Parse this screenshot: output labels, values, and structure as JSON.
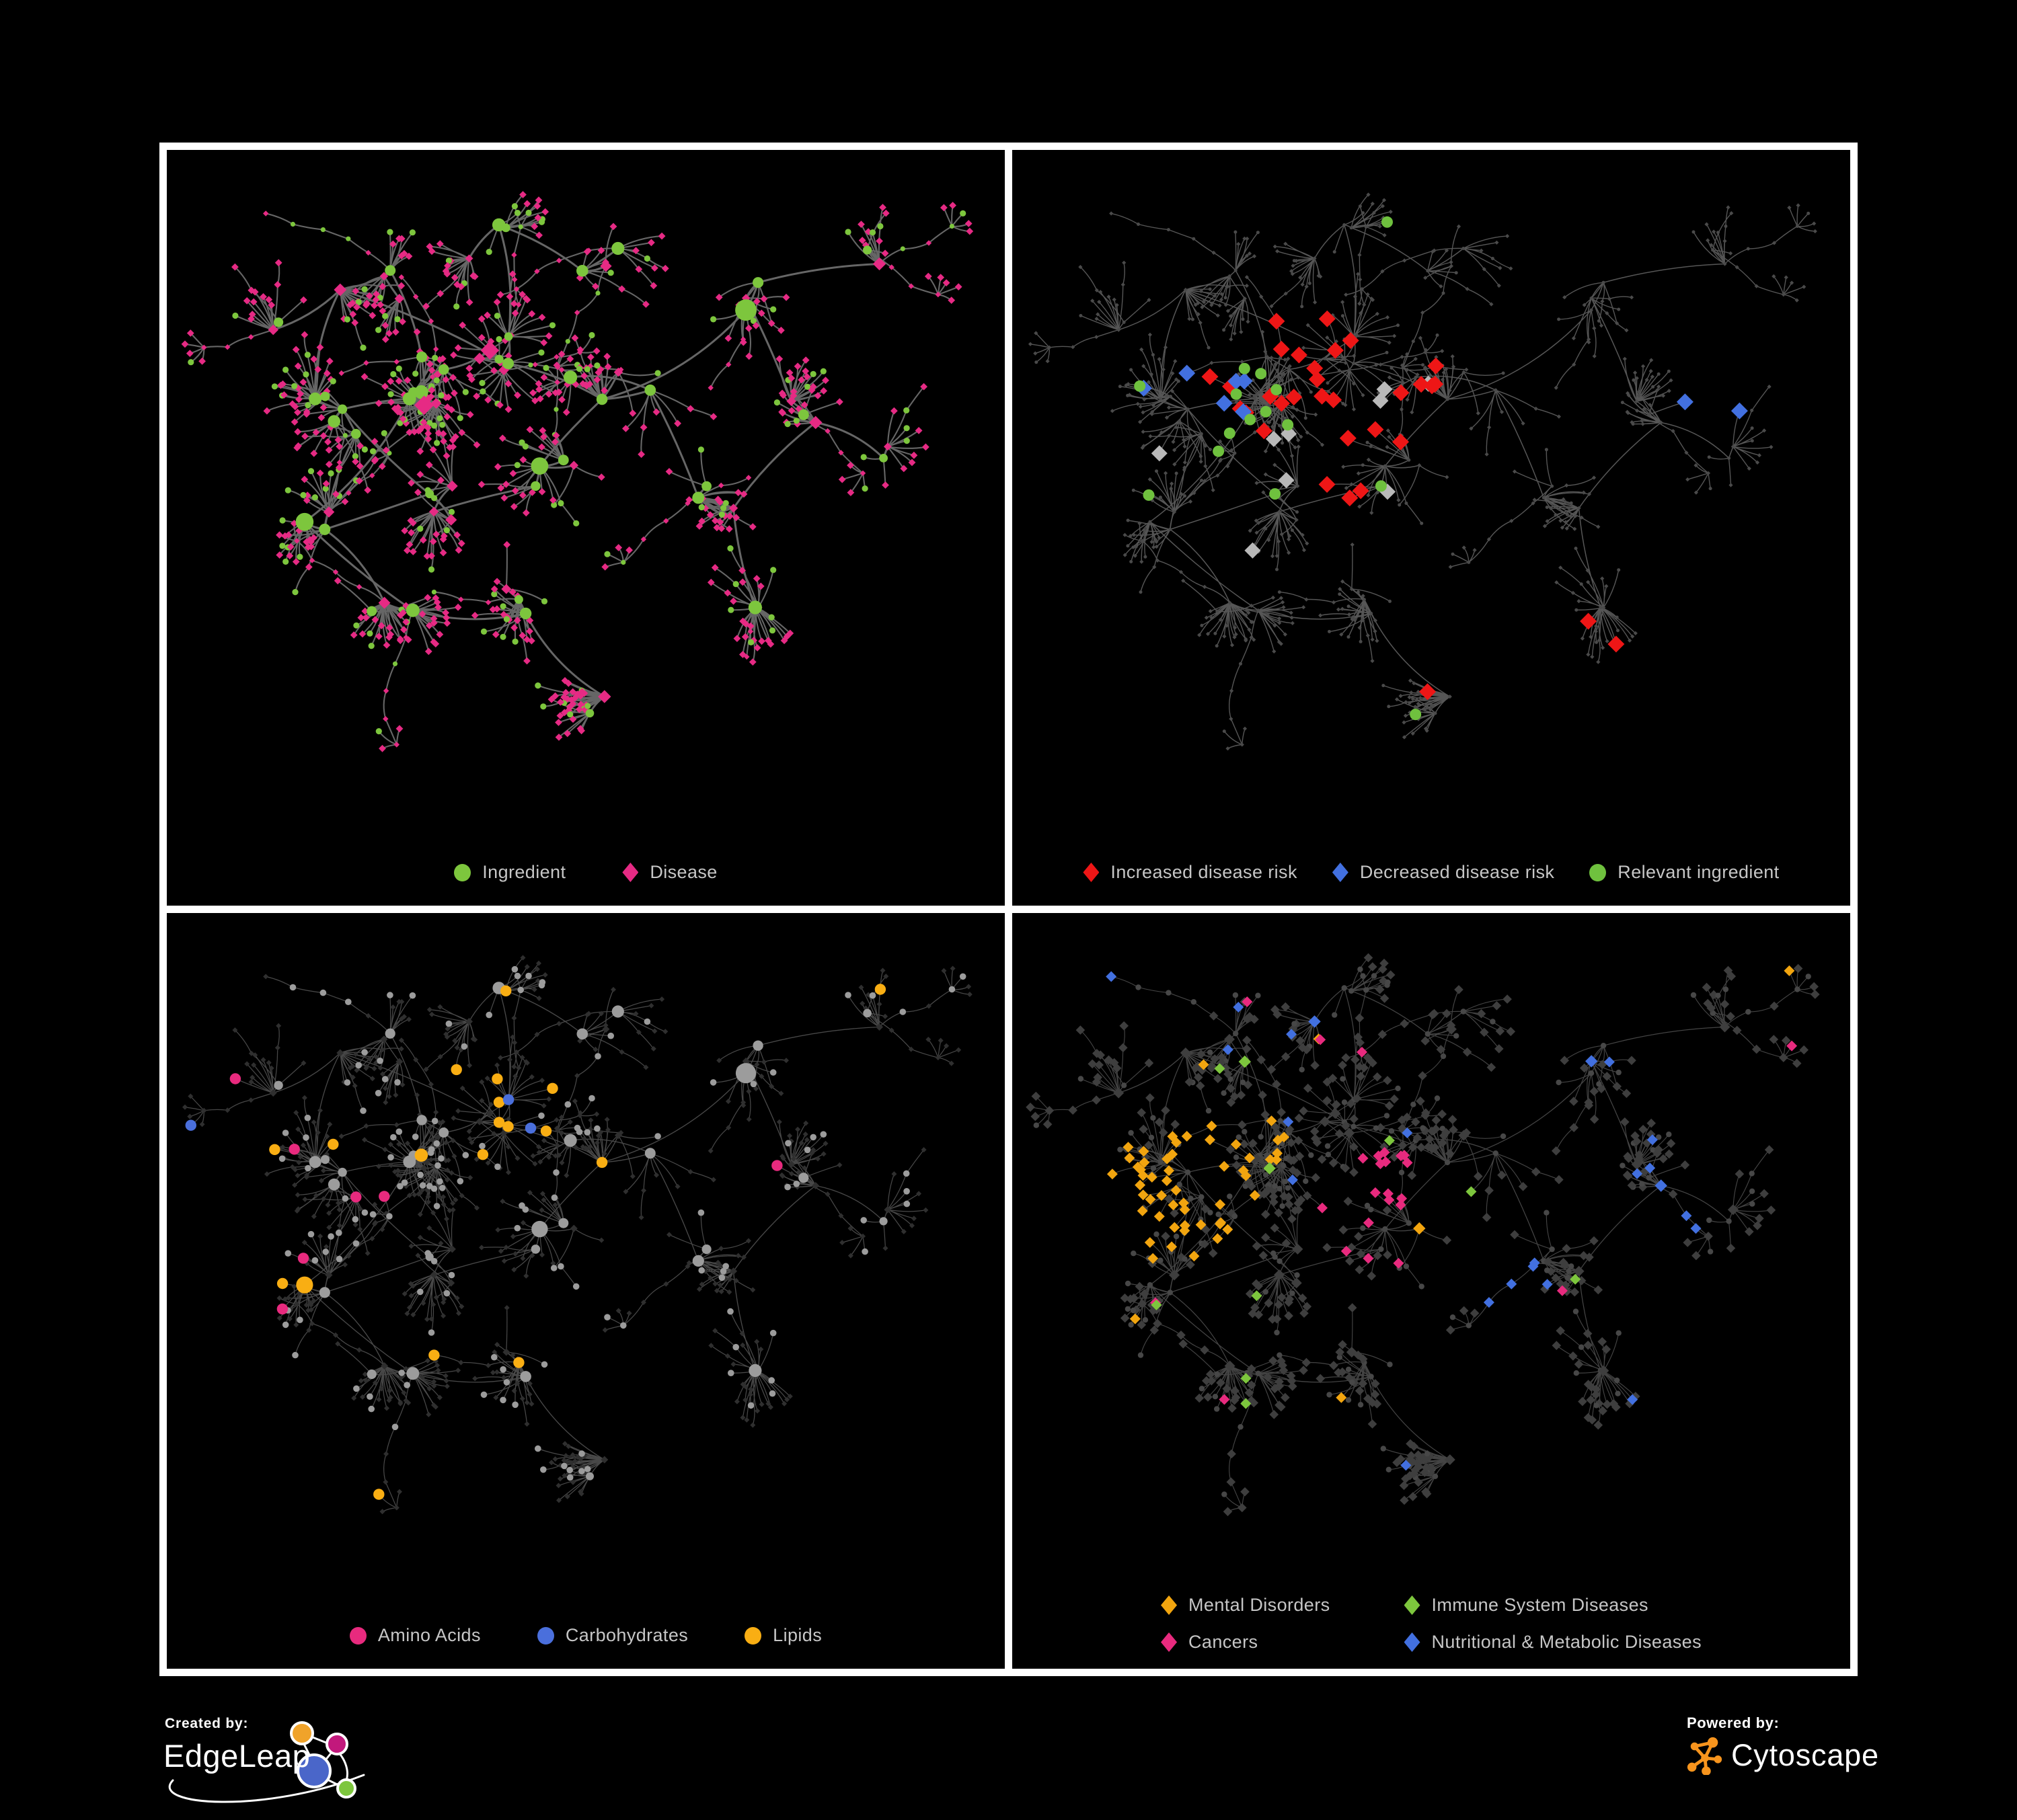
{
  "figure": {
    "background": "#000000",
    "frame_border_color": "#ffffff",
    "panels": [
      {
        "id": "ingredient-disease-network",
        "legend_layout": "row",
        "legend": [
          {
            "label": "Ingredient",
            "shape": "circle",
            "color": "#7dc63d"
          },
          {
            "label": "Disease",
            "shape": "diamond",
            "color": "#e62a84"
          }
        ]
      },
      {
        "id": "disease-risk-network",
        "legend_layout": "row-tight",
        "legend": [
          {
            "label": "Increased disease risk",
            "shape": "diamond",
            "color": "#ee1616"
          },
          {
            "label": "Decreased disease risk",
            "shape": "diamond",
            "color": "#4270e0"
          },
          {
            "label": "Relevant ingredient",
            "shape": "circle",
            "color": "#6fc13e"
          }
        ]
      },
      {
        "id": "ingredient-classes-network",
        "legend_layout": "row",
        "legend": [
          {
            "label": "Amino Acids",
            "shape": "circle",
            "color": "#e82a7e"
          },
          {
            "label": "Carbohydrates",
            "shape": "circle",
            "color": "#4a6fdc"
          },
          {
            "label": "Lipids",
            "shape": "circle",
            "color": "#f9ae13"
          }
        ]
      },
      {
        "id": "disease-classes-network",
        "legend_layout": "grid2",
        "legend": [
          {
            "label": "Mental Disorders",
            "shape": "diamond",
            "color": "#f2a50f"
          },
          {
            "label": "Immune System Diseases",
            "shape": "diamond",
            "color": "#7dc63d"
          },
          {
            "label": "Cancers",
            "shape": "diamond",
            "color": "#e82a7e"
          },
          {
            "label": "Nutritional & Metabolic Diseases",
            "shape": "diamond",
            "color": "#4270e0"
          }
        ]
      }
    ]
  },
  "network_style": {
    "panel1": {
      "ingredient": "#7dc63d",
      "disease": "#e62a84",
      "edge": "#6c6c6c"
    },
    "panel2": {
      "base": "#4a4a4a",
      "edge": "#606060",
      "increased": "#ee1616",
      "decreased": "#4270e0",
      "neutral": "#b9b9b9",
      "relevant": "#6fc13e"
    },
    "panel3": {
      "ingredient_base": "#9c9c9c",
      "disease_base": "#2f2f2f",
      "edge": "#8f8f8f",
      "amino": "#e82a7e",
      "carbohydrate": "#4a6fdc",
      "lipid": "#f9ae13"
    },
    "panel4": {
      "disease_base": "#3e3e3e",
      "ingredient_base": "#474747",
      "edge": "#989898",
      "mental": "#f2a50f",
      "immune": "#7dc63d",
      "cancer": "#e82a7e",
      "nutritional": "#4270e0"
    }
  },
  "footer": {
    "created_by_label": "Created by:",
    "created_by_brand": "EdgeLeap",
    "powered_by_label": "Powered by:",
    "powered_by_brand": "Cytoscape",
    "edgeleap_logo_colors": {
      "orange": "#f0a32a",
      "magenta": "#c2187c",
      "blue": "#4a66c9",
      "green": "#7dc63d",
      "stroke": "#ffffff"
    },
    "cytoscape_logo_color": "#f7941d"
  }
}
